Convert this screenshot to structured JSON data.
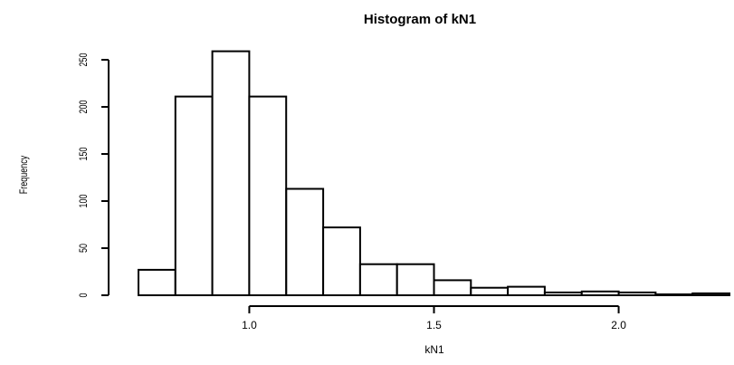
{
  "chart_data": {
    "type": "bar",
    "title": "Histogram of kN1",
    "xlabel": "kN1",
    "ylabel": "Frequency",
    "x_ticks": [
      "1.0",
      "1.5",
      "2.0"
    ],
    "y_ticks": [
      "0",
      "50",
      "100",
      "150",
      "200",
      "250"
    ],
    "bins": [
      {
        "start": 0.7,
        "end": 0.8,
        "value": 27
      },
      {
        "start": 0.8,
        "end": 0.9,
        "value": 211
      },
      {
        "start": 0.9,
        "end": 1.0,
        "value": 259
      },
      {
        "start": 1.0,
        "end": 1.1,
        "value": 211
      },
      {
        "start": 1.1,
        "end": 1.2,
        "value": 113
      },
      {
        "start": 1.2,
        "end": 1.3,
        "value": 72
      },
      {
        "start": 1.3,
        "end": 1.4,
        "value": 33
      },
      {
        "start": 1.4,
        "end": 1.5,
        "value": 33
      },
      {
        "start": 1.5,
        "end": 1.6,
        "value": 16
      },
      {
        "start": 1.6,
        "end": 1.7,
        "value": 8
      },
      {
        "start": 1.7,
        "end": 1.8,
        "value": 9
      },
      {
        "start": 1.8,
        "end": 1.9,
        "value": 3
      },
      {
        "start": 1.9,
        "end": 2.0,
        "value": 4
      },
      {
        "start": 2.0,
        "end": 2.1,
        "value": 3
      },
      {
        "start": 2.1,
        "end": 2.2,
        "value": 1
      },
      {
        "start": 2.2,
        "end": 2.3,
        "value": 2
      }
    ],
    "xlim": [
      0.7,
      2.3
    ],
    "ylim": [
      0,
      250
    ],
    "grid": false
  }
}
